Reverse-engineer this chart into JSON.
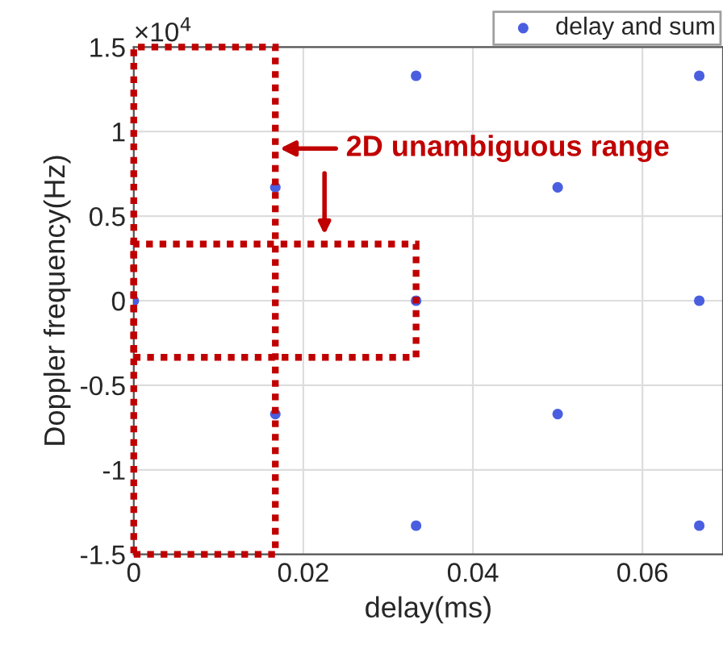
{
  "chart_data": {
    "type": "scatter",
    "xlabel": "delay(ms)",
    "ylabel": "Doppler frequency(Hz)",
    "series": [
      {
        "name": "delay and sum",
        "color": "#4a5fe0",
        "x": [
          0,
          0.0167,
          0.0167,
          0.0333,
          0.0333,
          0.0333,
          0.05,
          0.05,
          0.0667,
          0.0667,
          0.0667
        ],
        "values": [
          0,
          0.67,
          -0.67,
          0,
          1.33,
          -1.33,
          0.67,
          -0.67,
          1.33,
          0,
          -1.33
        ]
      }
    ],
    "xlim": [
      0,
      0.0695
    ],
    "xticks": [
      0,
      0.02,
      0.04,
      0.06
    ],
    "ylim": [
      -1.5,
      1.5
    ],
    "yticks": [
      {
        "value": -1.5,
        "label": "-1.5"
      },
      {
        "value": -1,
        "label": "-1"
      },
      {
        "value": -0.5,
        "label": "-0.5"
      },
      0,
      0.5,
      1,
      1.5
    ],
    "annotations": [
      "×10$^{4}$",
      "2D unambiguous range"
    ],
    "grid": true,
    "legend": "top right",
    "marker": "circle"
  }
}
